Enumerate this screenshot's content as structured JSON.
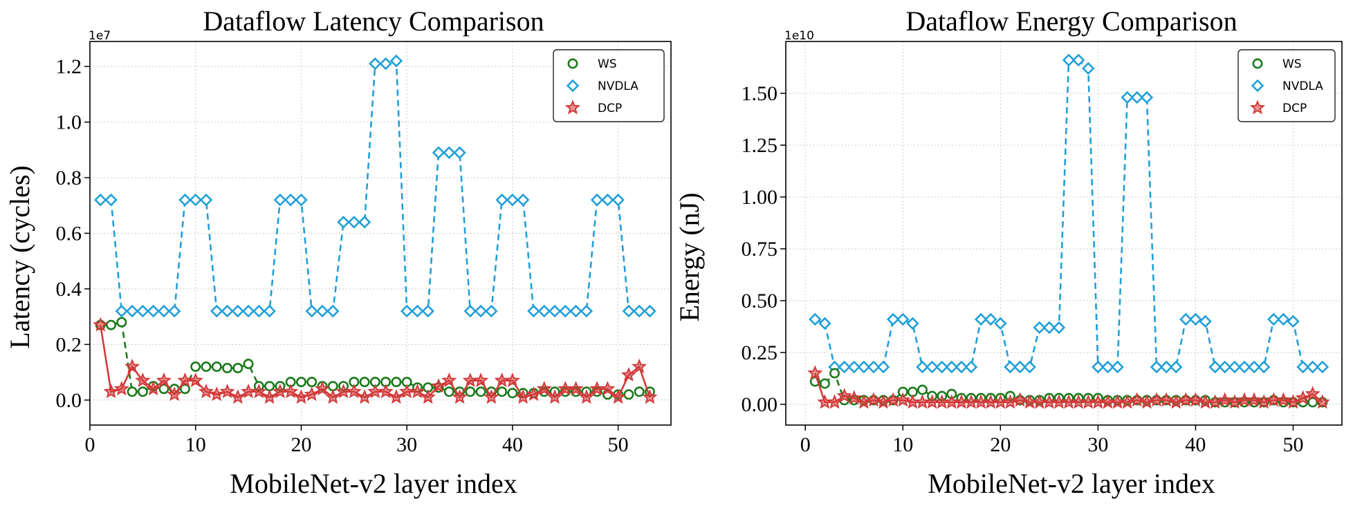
{
  "chart_data": [
    {
      "type": "line",
      "title": "Dataflow Latency Comparison",
      "xlabel": "MobileNet-v2 layer index",
      "ylabel": "Latency (cycles)",
      "y_scale_label": "1e7",
      "xlim": [
        0,
        55
      ],
      "ylim": [
        -0.09,
        1.29
      ],
      "xticks": [
        0,
        10,
        20,
        30,
        40,
        50
      ],
      "xtick_labels": [
        "0",
        "10",
        "20",
        "30",
        "40",
        "50"
      ],
      "yticks": [
        0.0,
        0.2,
        0.4,
        0.6,
        0.8,
        1.0,
        1.2
      ],
      "ytick_labels": [
        "0.0",
        "0.2",
        "0.4",
        "0.6",
        "0.8",
        "1.0",
        "1.2"
      ],
      "grid": true,
      "legend_position": "top-right",
      "x": [
        1,
        2,
        3,
        4,
        5,
        6,
        7,
        8,
        9,
        10,
        11,
        12,
        13,
        14,
        15,
        16,
        17,
        18,
        19,
        20,
        21,
        22,
        23,
        24,
        25,
        26,
        27,
        28,
        29,
        30,
        31,
        32,
        33,
        34,
        35,
        36,
        37,
        38,
        39,
        40,
        41,
        42,
        43,
        44,
        45,
        46,
        47,
        48,
        49,
        50,
        51,
        52,
        53
      ],
      "series": [
        {
          "name": "WS",
          "color": "#1a7a1a",
          "marker": "circle",
          "values": [
            0.27,
            0.27,
            0.28,
            0.03,
            0.03,
            0.05,
            0.04,
            0.04,
            0.04,
            0.12,
            0.12,
            0.12,
            0.115,
            0.115,
            0.13,
            0.05,
            0.05,
            0.05,
            0.065,
            0.065,
            0.065,
            0.05,
            0.05,
            0.05,
            0.065,
            0.065,
            0.065,
            0.065,
            0.065,
            0.065,
            0.045,
            0.045,
            0.045,
            0.03,
            0.03,
            0.03,
            0.03,
            0.03,
            0.03,
            0.025,
            0.025,
            0.025,
            0.03,
            0.03,
            0.03,
            0.03,
            0.03,
            0.03,
            0.02,
            0.02,
            0.02,
            0.03,
            0.03
          ]
        },
        {
          "name": "NVDLA",
          "color": "#1f9fd8",
          "marker": "diamond",
          "values": [
            0.72,
            0.72,
            0.32,
            0.32,
            0.32,
            0.32,
            0.32,
            0.32,
            0.72,
            0.72,
            0.72,
            0.32,
            0.32,
            0.32,
            0.32,
            0.32,
            0.32,
            0.72,
            0.72,
            0.72,
            0.32,
            0.32,
            0.32,
            0.64,
            0.64,
            0.64,
            1.21,
            1.21,
            1.22,
            0.32,
            0.32,
            0.32,
            0.89,
            0.89,
            0.89,
            0.32,
            0.32,
            0.32,
            0.72,
            0.72,
            0.72,
            0.32,
            0.32,
            0.32,
            0.32,
            0.32,
            0.32,
            0.72,
            0.72,
            0.72,
            0.32,
            0.32,
            0.32
          ]
        },
        {
          "name": "DCP",
          "color": "#d23a3a",
          "marker": "star",
          "values": [
            0.27,
            0.03,
            0.04,
            0.12,
            0.07,
            0.04,
            0.07,
            0.02,
            0.07,
            0.07,
            0.03,
            0.02,
            0.03,
            0.01,
            0.03,
            0.03,
            0.01,
            0.03,
            0.03,
            0.01,
            0.02,
            0.04,
            0.01,
            0.03,
            0.03,
            0.01,
            0.03,
            0.03,
            0.01,
            0.03,
            0.03,
            0.01,
            0.05,
            0.07,
            0.01,
            0.07,
            0.07,
            0.01,
            0.07,
            0.07,
            0.01,
            0.02,
            0.04,
            0.01,
            0.04,
            0.04,
            0.01,
            0.04,
            0.04,
            0.01,
            0.09,
            0.12,
            0.01
          ]
        }
      ]
    },
    {
      "type": "line",
      "title": "Dataflow Energy Comparison",
      "xlabel": "MobileNet-v2 layer index",
      "ylabel": "Energy (nJ)",
      "y_scale_label": "1e10",
      "xlim": [
        -2,
        55
      ],
      "ylim": [
        -0.1,
        1.75
      ],
      "xticks": [
        0,
        10,
        20,
        30,
        40,
        50
      ],
      "xtick_labels": [
        "0",
        "10",
        "20",
        "30",
        "40",
        "50"
      ],
      "yticks": [
        0.0,
        0.25,
        0.5,
        0.75,
        1.0,
        1.25,
        1.5
      ],
      "ytick_labels": [
        "0.00",
        "0.25",
        "0.50",
        "0.75",
        "1.00",
        "1.25",
        "1.50"
      ],
      "grid": true,
      "legend_position": "top-right",
      "x": [
        1,
        2,
        3,
        4,
        5,
        6,
        7,
        8,
        9,
        10,
        11,
        12,
        13,
        14,
        15,
        16,
        17,
        18,
        19,
        20,
        21,
        22,
        23,
        24,
        25,
        26,
        27,
        28,
        29,
        30,
        31,
        32,
        33,
        34,
        35,
        36,
        37,
        38,
        39,
        40,
        41,
        42,
        43,
        44,
        45,
        46,
        47,
        48,
        49,
        50,
        51,
        52,
        53
      ],
      "series": [
        {
          "name": "WS",
          "color": "#1a7a1a",
          "marker": "circle",
          "values": [
            0.11,
            0.1,
            0.15,
            0.02,
            0.02,
            0.02,
            0.02,
            0.02,
            0.02,
            0.06,
            0.06,
            0.07,
            0.04,
            0.04,
            0.05,
            0.03,
            0.03,
            0.03,
            0.03,
            0.03,
            0.04,
            0.02,
            0.02,
            0.02,
            0.03,
            0.03,
            0.03,
            0.03,
            0.03,
            0.03,
            0.02,
            0.02,
            0.02,
            0.02,
            0.02,
            0.02,
            0.02,
            0.02,
            0.02,
            0.02,
            0.02,
            0.01,
            0.01,
            0.01,
            0.01,
            0.01,
            0.01,
            0.02,
            0.01,
            0.01,
            0.01,
            0.01,
            0.01
          ]
        },
        {
          "name": "NVDLA",
          "color": "#1f9fd8",
          "marker": "diamond",
          "values": [
            0.41,
            0.39,
            0.18,
            0.18,
            0.18,
            0.18,
            0.18,
            0.18,
            0.41,
            0.41,
            0.39,
            0.18,
            0.18,
            0.18,
            0.18,
            0.18,
            0.18,
            0.41,
            0.41,
            0.39,
            0.18,
            0.18,
            0.18,
            0.37,
            0.37,
            0.37,
            1.66,
            1.66,
            1.62,
            0.18,
            0.18,
            0.18,
            1.48,
            1.48,
            1.48,
            0.18,
            0.18,
            0.18,
            0.41,
            0.41,
            0.4,
            0.18,
            0.18,
            0.18,
            0.18,
            0.18,
            0.18,
            0.41,
            0.41,
            0.4,
            0.18,
            0.18,
            0.18
          ]
        },
        {
          "name": "DCP",
          "color": "#d23a3a",
          "marker": "star",
          "values": [
            0.15,
            0.01,
            0.01,
            0.04,
            0.03,
            0.01,
            0.02,
            0.01,
            0.02,
            0.02,
            0.01,
            0.01,
            0.01,
            0.01,
            0.01,
            0.01,
            0.01,
            0.01,
            0.01,
            0.01,
            0.01,
            0.02,
            0.01,
            0.01,
            0.01,
            0.01,
            0.01,
            0.01,
            0.01,
            0.01,
            0.01,
            0.01,
            0.01,
            0.02,
            0.01,
            0.02,
            0.02,
            0.01,
            0.02,
            0.02,
            0.01,
            0.01,
            0.02,
            0.01,
            0.02,
            0.02,
            0.01,
            0.02,
            0.02,
            0.01,
            0.03,
            0.05,
            0.01
          ]
        }
      ]
    }
  ]
}
